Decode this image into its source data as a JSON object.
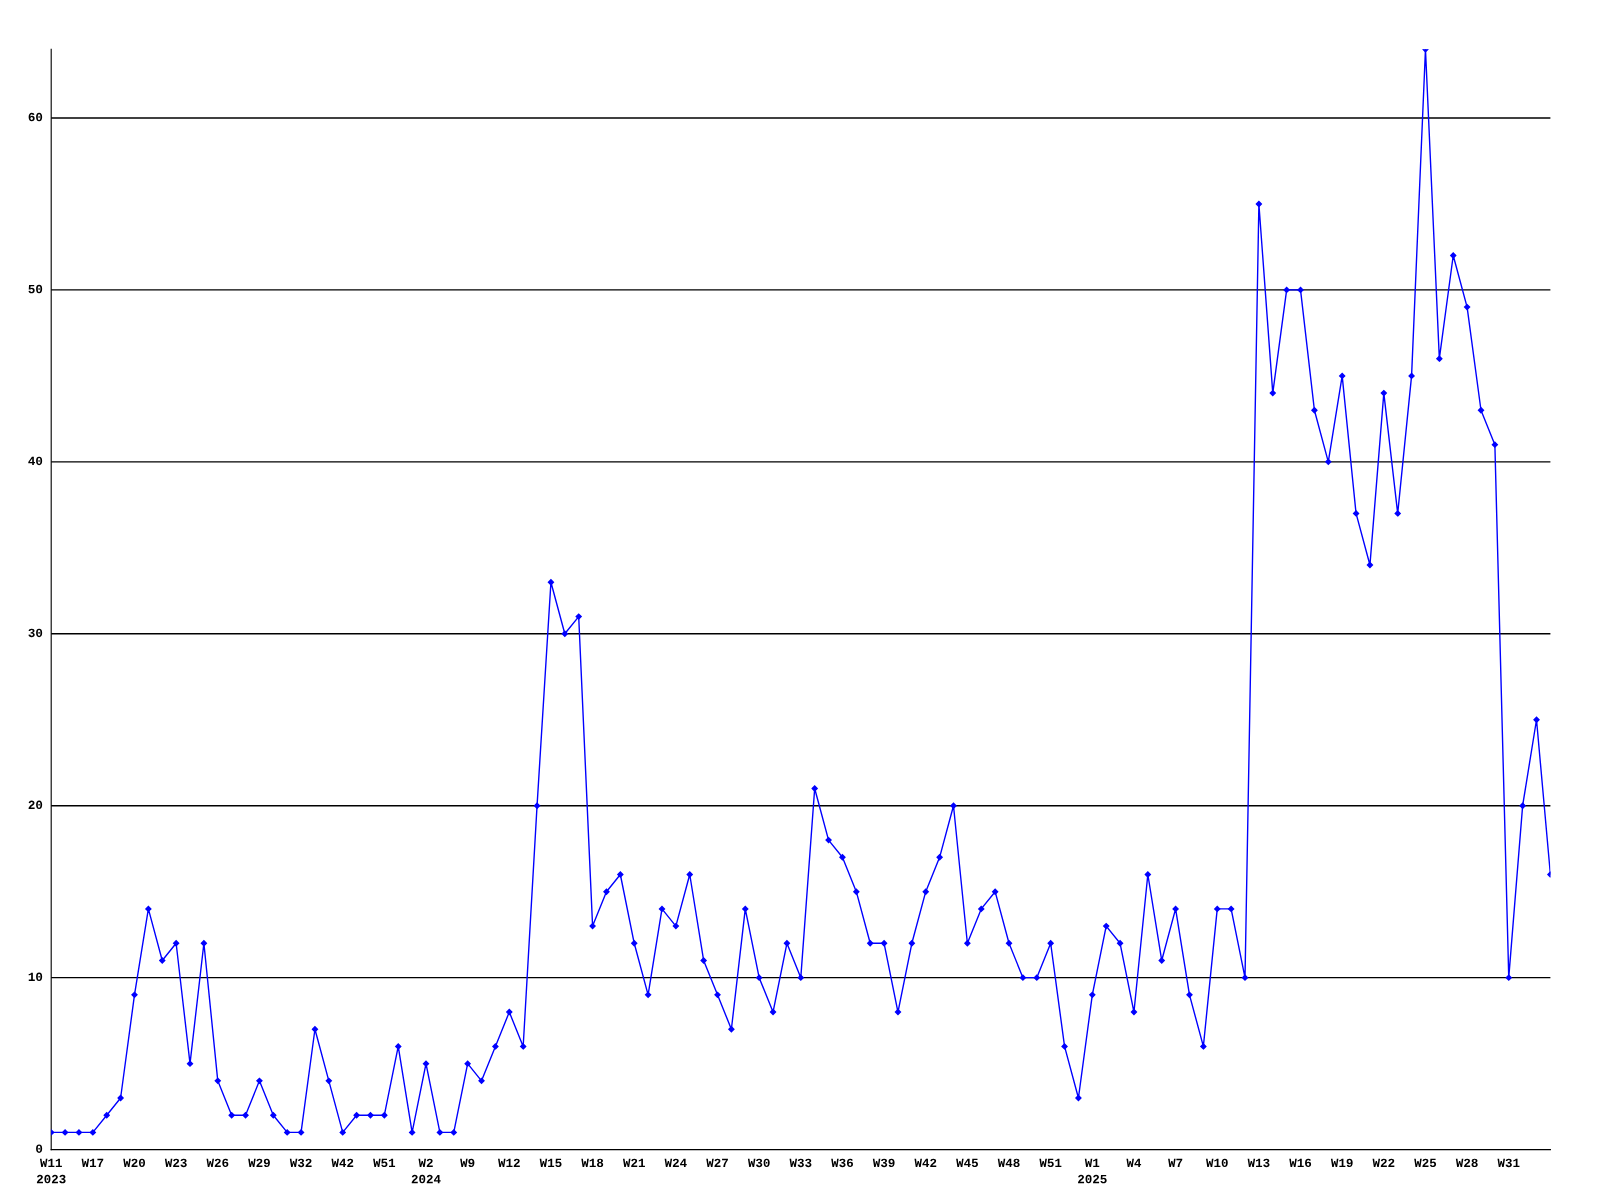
{
  "chart_data": {
    "type": "line",
    "categories": [
      "W11\n2023",
      null,
      null,
      "W17",
      null,
      null,
      "W20",
      null,
      null,
      "W23",
      null,
      null,
      "W26",
      null,
      null,
      "W29",
      null,
      null,
      "W32",
      null,
      null,
      "W42",
      null,
      null,
      "W51",
      null,
      null,
      "W2\n2024",
      null,
      null,
      "W9",
      null,
      null,
      "W12",
      null,
      null,
      "W15",
      null,
      null,
      "W18",
      null,
      null,
      "W21",
      null,
      null,
      "W24",
      null,
      null,
      "W27",
      null,
      null,
      "W30",
      null,
      null,
      "W33",
      null,
      null,
      "W36",
      null,
      null,
      "W39",
      null,
      null,
      "W42",
      null,
      null,
      "W45",
      null,
      null,
      "W48",
      null,
      null,
      "W51",
      null,
      null,
      "W1\n2025",
      null,
      null,
      "W4",
      null,
      null,
      "W7",
      null,
      null,
      "W10",
      null,
      null,
      "W13",
      null,
      null,
      "W16",
      null,
      null,
      "W19",
      null,
      null,
      "W22",
      null,
      null,
      "W25",
      null,
      null,
      "W28",
      null,
      null,
      "W31",
      null,
      null,
      null
    ],
    "series": [
      {
        "color": "#0000ff",
        "values": [
          1,
          1,
          1,
          1,
          2,
          3,
          9,
          14,
          11,
          12,
          5,
          12,
          4,
          2,
          2,
          4,
          2,
          1,
          1,
          7,
          4,
          1,
          2,
          2,
          2,
          6,
          1,
          5,
          1,
          1,
          5,
          4,
          6,
          8,
          6,
          20,
          33,
          30,
          31,
          13,
          15,
          16,
          12,
          9,
          14,
          13,
          16,
          11,
          9,
          7,
          14,
          10,
          8,
          12,
          10,
          21,
          18,
          17,
          15,
          12,
          12,
          8,
          12,
          15,
          17,
          20,
          12,
          14,
          15,
          12,
          10,
          10,
          12,
          6,
          3,
          9,
          13,
          12,
          8,
          16,
          11,
          14,
          9,
          6,
          14,
          14,
          10,
          55,
          44,
          50,
          50,
          43,
          40,
          45,
          37,
          34,
          44,
          37,
          45,
          64,
          46,
          52,
          49,
          43,
          41,
          10,
          20,
          25,
          16
        ]
      }
    ],
    "ylim": [
      0,
      64
    ],
    "yticks": [
      0,
      10,
      20,
      30,
      40,
      50,
      60
    ],
    "grid": "y",
    "marker": "diamond",
    "line_style": "solid",
    "legend": false
  }
}
